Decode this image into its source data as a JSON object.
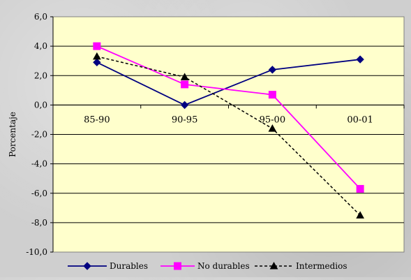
{
  "chart_data": {
    "type": "line",
    "title": "",
    "xlabel": "",
    "ylabel": "Porcentaje",
    "categories": [
      "85-90",
      "90-95",
      "95-00",
      "00-01"
    ],
    "ylim": [
      -10,
      6
    ],
    "ytick_step": 2,
    "ytick_labels": [
      "6,0",
      "4,0",
      "2,0",
      "0,0",
      "-2,0",
      "-4,0",
      "-6,0",
      "-8,0",
      "-10,0"
    ],
    "grid": "horizontal",
    "legend_position": "bottom",
    "plot_background": "#ffffcc",
    "series": [
      {
        "name": "Durables",
        "values": [
          2.9,
          0.0,
          2.4,
          3.1
        ],
        "color": "#000080",
        "marker": "diamond",
        "line_style": "solid"
      },
      {
        "name": "No durables",
        "values": [
          4.0,
          1.4,
          0.7,
          -5.7
        ],
        "color": "#ff00ff",
        "marker": "square",
        "line_style": "solid"
      },
      {
        "name": "Intermedios",
        "values": [
          3.3,
          1.9,
          -1.6,
          -7.5
        ],
        "color": "#000000",
        "marker": "triangle",
        "line_style": "dashed"
      }
    ]
  }
}
